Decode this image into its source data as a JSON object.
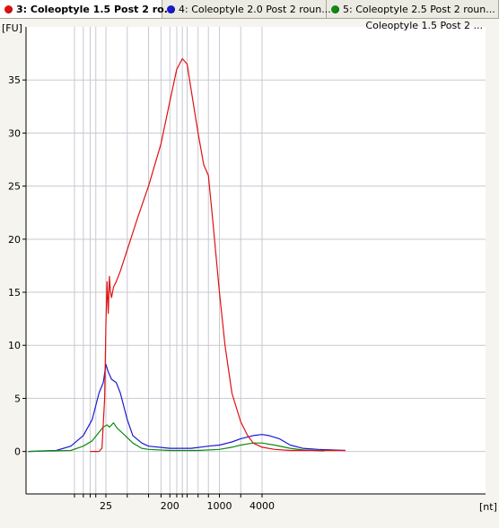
{
  "tabs": [
    {
      "label": "3: Coleoptyle 1.5 Post 2 ro...",
      "color": "#e01010",
      "active": true
    },
    {
      "label": "4: Coleoptyle 2.0 Post 2 roun...",
      "color": "#1a1ad0",
      "active": false
    },
    {
      "label": "5: Coleoptyle 2.5 Post 2 roun...",
      "color": "#108a10",
      "active": false
    }
  ],
  "chart_data": {
    "type": "line",
    "title": "Coleoptyle 1.5 Post 2 ...",
    "ylabel": "[FU]",
    "xlabel": "[nt]",
    "y_ticks": [
      "0",
      "5",
      "10",
      "15",
      "20",
      "25",
      "30",
      "35"
    ],
    "x_tick_labels": [
      "25",
      "200",
      "1000",
      "4000"
    ],
    "x_scale": "log",
    "ylim": [
      -4,
      40
    ],
    "grid": true,
    "series": [
      {
        "name": "3: Coleoptyle 1.5 Post 2 ro...",
        "color": "#e01010",
        "points": [
          [
            15,
            0
          ],
          [
            20,
            0
          ],
          [
            22,
            0.3
          ],
          [
            24,
            5
          ],
          [
            25,
            12
          ],
          [
            26,
            16
          ],
          [
            27,
            13
          ],
          [
            28,
            16.5
          ],
          [
            29,
            15
          ],
          [
            30,
            14.5
          ],
          [
            32,
            15.5
          ],
          [
            35,
            16
          ],
          [
            40,
            17
          ],
          [
            50,
            19
          ],
          [
            70,
            22
          ],
          [
            100,
            25
          ],
          [
            150,
            29
          ],
          [
            200,
            33
          ],
          [
            250,
            36
          ],
          [
            300,
            37
          ],
          [
            350,
            36.5
          ],
          [
            400,
            34
          ],
          [
            500,
            30
          ],
          [
            600,
            27
          ],
          [
            700,
            26
          ],
          [
            800,
            22
          ],
          [
            1000,
            15
          ],
          [
            1200,
            10
          ],
          [
            1500,
            5.5
          ],
          [
            2000,
            2.8
          ],
          [
            2500,
            1.5
          ],
          [
            3000,
            0.8
          ],
          [
            4000,
            0.4
          ],
          [
            6000,
            0.2
          ],
          [
            10000,
            0.1
          ],
          [
            20000,
            0.1
          ],
          [
            60000,
            0.1
          ]
        ]
      },
      {
        "name": "4: Coleoptyle 2.0 Post 2 roun...",
        "color": "#1a1ad0",
        "points": [
          [
            2,
            0
          ],
          [
            5,
            0.1
          ],
          [
            8,
            0.5
          ],
          [
            12,
            1.5
          ],
          [
            16,
            3
          ],
          [
            20,
            5.5
          ],
          [
            23,
            6.5
          ],
          [
            25,
            8.2
          ],
          [
            27,
            7.5
          ],
          [
            30,
            6.8
          ],
          [
            35,
            6.5
          ],
          [
            40,
            5.5
          ],
          [
            50,
            3
          ],
          [
            60,
            1.5
          ],
          [
            80,
            0.8
          ],
          [
            100,
            0.5
          ],
          [
            200,
            0.3
          ],
          [
            400,
            0.3
          ],
          [
            700,
            0.5
          ],
          [
            1000,
            0.6
          ],
          [
            1500,
            0.9
          ],
          [
            2000,
            1.2
          ],
          [
            3000,
            1.5
          ],
          [
            4000,
            1.6
          ],
          [
            5000,
            1.5
          ],
          [
            7000,
            1.2
          ],
          [
            10000,
            0.6
          ],
          [
            15000,
            0.3
          ],
          [
            25000,
            0.2
          ],
          [
            60000,
            0.1
          ]
        ]
      },
      {
        "name": "5: Coleoptyle 2.5 Post 2 roun...",
        "color": "#108a10",
        "points": [
          [
            2,
            0
          ],
          [
            8,
            0.1
          ],
          [
            12,
            0.5
          ],
          [
            16,
            1
          ],
          [
            20,
            1.8
          ],
          [
            23,
            2.3
          ],
          [
            26,
            2.5
          ],
          [
            28,
            2.3
          ],
          [
            32,
            2.7
          ],
          [
            36,
            2.2
          ],
          [
            45,
            1.6
          ],
          [
            60,
            0.8
          ],
          [
            80,
            0.3
          ],
          [
            100,
            0.2
          ],
          [
            200,
            0.1
          ],
          [
            500,
            0.1
          ],
          [
            1000,
            0.2
          ],
          [
            1500,
            0.4
          ],
          [
            2000,
            0.6
          ],
          [
            3000,
            0.8
          ],
          [
            4000,
            0.8
          ],
          [
            6000,
            0.6
          ],
          [
            10000,
            0.3
          ],
          [
            15000,
            0.15
          ],
          [
            30000,
            0.05
          ]
        ]
      }
    ]
  }
}
